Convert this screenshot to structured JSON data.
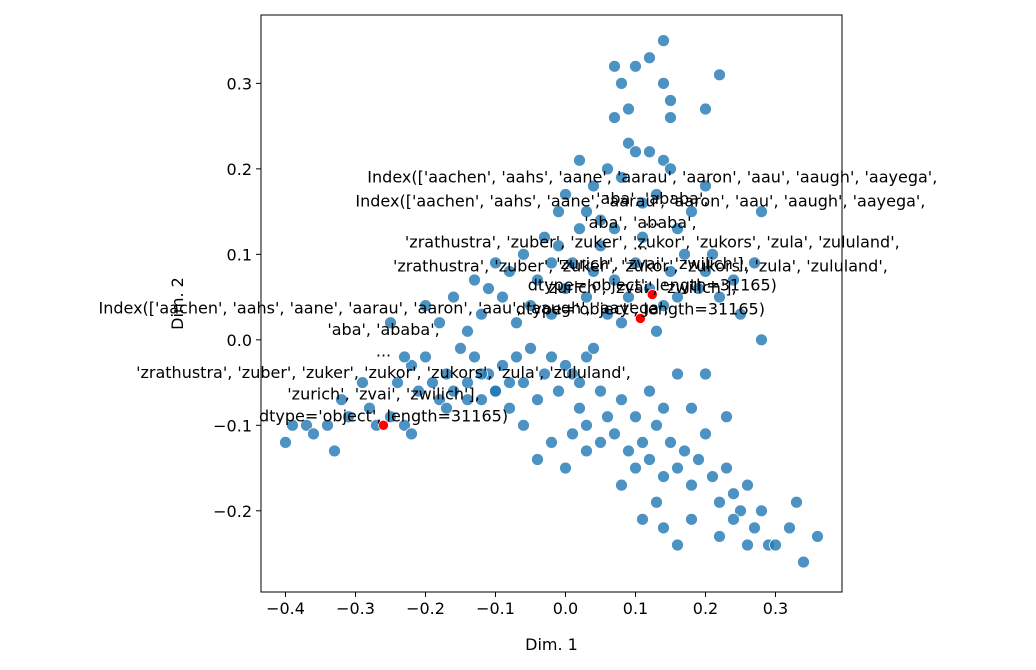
{
  "chart_data": {
    "type": "scatter",
    "xlabel": "Dim. 1",
    "ylabel": "Dim. 2",
    "xlim": [
      -0.435,
      0.395
    ],
    "ylim": [
      -0.295,
      0.38
    ],
    "xticks": [
      -0.4,
      -0.3,
      -0.2,
      -0.1,
      0.0,
      0.1,
      0.2,
      0.3
    ],
    "yticks": [
      -0.2,
      -0.1,
      0.0,
      0.1,
      0.2,
      0.3
    ],
    "xtick_labels": [
      "−0.4",
      "−0.3",
      "−0.2",
      "−0.1",
      "0.0",
      "0.1",
      "0.2",
      "0.3"
    ],
    "ytick_labels": [
      "−0.2",
      "−0.1",
      "0.0",
      "0.1",
      "0.2",
      "0.3"
    ],
    "grid": false,
    "colors": {
      "points": "#1f77b4",
      "highlight": "#ff0000"
    },
    "series": [
      {
        "values": [
          [
            -0.4,
            -0.12
          ],
          [
            -0.39,
            -0.1
          ],
          [
            -0.37,
            -0.1
          ],
          [
            -0.36,
            -0.11
          ],
          [
            -0.34,
            -0.1
          ],
          [
            -0.33,
            -0.13
          ],
          [
            -0.32,
            -0.07
          ],
          [
            -0.31,
            -0.09
          ],
          [
            -0.29,
            -0.05
          ],
          [
            -0.28,
            -0.08
          ],
          [
            -0.27,
            -0.1
          ],
          [
            -0.25,
            -0.09
          ],
          [
            -0.24,
            -0.05
          ],
          [
            -0.23,
            -0.1
          ],
          [
            -0.22,
            -0.11
          ],
          [
            -0.22,
            -0.03
          ],
          [
            -0.21,
            -0.06
          ],
          [
            -0.2,
            -0.02
          ],
          [
            -0.19,
            -0.05
          ],
          [
            -0.18,
            -0.07
          ],
          [
            -0.17,
            -0.04
          ],
          [
            -0.16,
            -0.06
          ],
          [
            -0.15,
            -0.01
          ],
          [
            -0.14,
            -0.05
          ],
          [
            -0.13,
            -0.02
          ],
          [
            -0.12,
            -0.07
          ],
          [
            -0.11,
            -0.04
          ],
          [
            -0.1,
            -0.06
          ],
          [
            -0.09,
            -0.03
          ],
          [
            -0.08,
            -0.05
          ],
          [
            -0.07,
            -0.02
          ],
          [
            -0.06,
            -0.05
          ],
          [
            -0.05,
            -0.01
          ],
          [
            -0.04,
            -0.07
          ],
          [
            -0.03,
            -0.04
          ],
          [
            -0.02,
            -0.02
          ],
          [
            -0.01,
            -0.06
          ],
          [
            0.0,
            -0.03
          ],
          [
            0.01,
            -0.04
          ],
          [
            0.02,
            -0.05
          ],
          [
            0.03,
            -0.02
          ],
          [
            0.04,
            -0.01
          ],
          [
            -0.25,
            0.02
          ],
          [
            -0.23,
            -0.02
          ],
          [
            -0.2,
            0.04
          ],
          [
            -0.18,
            0.02
          ],
          [
            -0.16,
            0.05
          ],
          [
            -0.14,
            0.01
          ],
          [
            -0.13,
            0.07
          ],
          [
            -0.12,
            0.03
          ],
          [
            -0.11,
            0.06
          ],
          [
            -0.1,
            0.09
          ],
          [
            -0.09,
            0.05
          ],
          [
            -0.08,
            0.08
          ],
          [
            -0.07,
            0.02
          ],
          [
            -0.06,
            0.1
          ],
          [
            -0.05,
            0.04
          ],
          [
            -0.04,
            0.07
          ],
          [
            -0.03,
            0.12
          ],
          [
            -0.02,
            0.03
          ],
          [
            -0.01,
            0.15
          ],
          [
            0.0,
            0.06
          ],
          [
            0.01,
            0.09
          ],
          [
            0.02,
            0.13
          ],
          [
            0.03,
            0.05
          ],
          [
            0.04,
            0.08
          ],
          [
            0.05,
            0.11
          ],
          [
            0.06,
            0.03
          ],
          [
            0.07,
            0.07
          ],
          [
            0.08,
            0.02
          ],
          [
            0.09,
            0.05
          ],
          [
            0.1,
            0.09
          ],
          [
            0.11,
            0.12
          ],
          [
            0.12,
            0.06
          ],
          [
            0.13,
            0.01
          ],
          [
            0.14,
            0.04
          ],
          [
            0.15,
            0.08
          ],
          [
            0.16,
            0.05
          ],
          [
            0.17,
            0.1
          ],
          [
            0.19,
            0.06
          ],
          [
            0.2,
            0.08
          ],
          [
            0.22,
            0.05
          ],
          [
            0.24,
            0.07
          ],
          [
            0.25,
            0.03
          ],
          [
            0.27,
            0.09
          ],
          [
            0.28,
            0.15
          ],
          [
            0.28,
            0.0
          ],
          [
            0.02,
            0.21
          ],
          [
            0.04,
            0.18
          ],
          [
            0.06,
            0.2
          ],
          [
            0.08,
            0.19
          ],
          [
            0.09,
            0.23
          ],
          [
            0.1,
            0.22
          ],
          [
            0.11,
            0.16
          ],
          [
            0.12,
            0.22
          ],
          [
            0.13,
            0.17
          ],
          [
            0.14,
            0.21
          ],
          [
            0.15,
            0.2
          ],
          [
            0.16,
            0.13
          ],
          [
            0.18,
            0.15
          ],
          [
            0.2,
            0.18
          ],
          [
            0.21,
            0.1
          ],
          [
            0.07,
            0.26
          ],
          [
            0.09,
            0.27
          ],
          [
            0.1,
            0.32
          ],
          [
            0.12,
            0.33
          ],
          [
            0.14,
            0.3
          ],
          [
            0.15,
            0.28
          ],
          [
            0.14,
            0.35
          ],
          [
            0.2,
            0.27
          ],
          [
            0.22,
            0.31
          ],
          [
            0.07,
            0.32
          ],
          [
            0.08,
            0.3
          ],
          [
            0.15,
            0.26
          ],
          [
            0.02,
            -0.08
          ],
          [
            0.03,
            -0.1
          ],
          [
            0.05,
            -0.06
          ],
          [
            0.06,
            -0.09
          ],
          [
            0.07,
            -0.11
          ],
          [
            0.08,
            -0.07
          ],
          [
            0.09,
            -0.13
          ],
          [
            0.1,
            -0.09
          ],
          [
            0.11,
            -0.12
          ],
          [
            0.12,
            -0.14
          ],
          [
            0.13,
            -0.1
          ],
          [
            0.14,
            -0.16
          ],
          [
            0.15,
            -0.12
          ],
          [
            0.16,
            -0.15
          ],
          [
            0.17,
            -0.13
          ],
          [
            0.18,
            -0.17
          ],
          [
            0.19,
            -0.14
          ],
          [
            0.2,
            -0.11
          ],
          [
            0.21,
            -0.16
          ],
          [
            0.22,
            -0.19
          ],
          [
            0.23,
            -0.15
          ],
          [
            0.24,
            -0.18
          ],
          [
            0.25,
            -0.2
          ],
          [
            0.26,
            -0.17
          ],
          [
            0.27,
            -0.22
          ],
          [
            0.28,
            -0.2
          ],
          [
            0.29,
            -0.24
          ],
          [
            0.3,
            -0.24
          ],
          [
            0.32,
            -0.22
          ],
          [
            0.34,
            -0.26
          ],
          [
            0.36,
            -0.23
          ],
          [
            0.33,
            -0.19
          ],
          [
            0.08,
            -0.17
          ],
          [
            0.1,
            -0.15
          ],
          [
            0.11,
            -0.21
          ],
          [
            0.13,
            -0.19
          ],
          [
            0.14,
            -0.22
          ],
          [
            0.16,
            -0.24
          ],
          [
            0.18,
            -0.21
          ],
          [
            0.22,
            -0.23
          ],
          [
            0.24,
            -0.21
          ],
          [
            0.26,
            -0.24
          ],
          [
            0.12,
            -0.06
          ],
          [
            0.14,
            -0.08
          ],
          [
            0.16,
            -0.04
          ],
          [
            0.18,
            -0.08
          ],
          [
            0.2,
            -0.04
          ],
          [
            0.23,
            -0.09
          ],
          [
            -0.04,
            -0.14
          ],
          [
            -0.02,
            -0.12
          ],
          [
            0.01,
            -0.11
          ],
          [
            0.03,
            -0.13
          ],
          [
            0.05,
            -0.12
          ],
          [
            0.0,
            -0.15
          ],
          [
            -0.06,
            -0.1
          ],
          [
            -0.08,
            -0.08
          ],
          [
            -0.1,
            -0.06
          ],
          [
            -0.12,
            -0.04
          ],
          [
            -0.14,
            -0.07
          ],
          [
            -0.17,
            -0.08
          ],
          [
            0.03,
            0.15
          ],
          [
            0.05,
            0.14
          ],
          [
            0.0,
            0.17
          ],
          [
            -0.01,
            0.11
          ],
          [
            -0.02,
            0.09
          ],
          [
            0.07,
            0.13
          ]
        ]
      },
      {
        "values": [
          [
            -0.26,
            -0.1
          ],
          [
            0.107,
            0.025
          ],
          [
            0.124,
            0.053
          ]
        ]
      }
    ],
    "annotations": [
      {
        "x": 0.107,
        "y": 0.025,
        "lines": [
          "Index(['aachen', 'aahs', 'aane', 'aarau', 'aaron', 'aau', 'aaugh', 'aayega',",
          "'aba', 'ababa',",
          "...",
          "'zrathustra', 'zuber', 'zuker', 'zukor', 'zukors', 'zula', 'zululand',",
          "'zurich', 'zvai', 'zwilich'],",
          "dtype='object', length=31165)"
        ]
      },
      {
        "x": 0.124,
        "y": 0.053,
        "lines": [
          "Index(['aachen', 'aahs', 'aane', 'aarau', 'aaron', 'aau', 'aaugh', 'aayega',",
          "'aba', 'ababa',",
          "...",
          "'zrathustra', 'zuber', 'zuker', 'zukor', 'zukors', 'zula', 'zululand',",
          "'zurich', 'zvai', 'zwilich'],",
          "dtype='object', length=31165)"
        ]
      },
      {
        "x": -0.26,
        "y": -0.1,
        "lines": [
          "Index(['aachen', 'aahs', 'aane', 'aarau', 'aaron', 'aau', 'aaugh', 'aayega',",
          "'aba', 'ababa',",
          "...",
          "'zrathustra', 'zuber', 'zuker', 'zukor', 'zukors', 'zula', 'zululand',",
          "'zurich', 'zvai', 'zwilich'],",
          "dtype='object', length=31165)"
        ]
      }
    ]
  }
}
